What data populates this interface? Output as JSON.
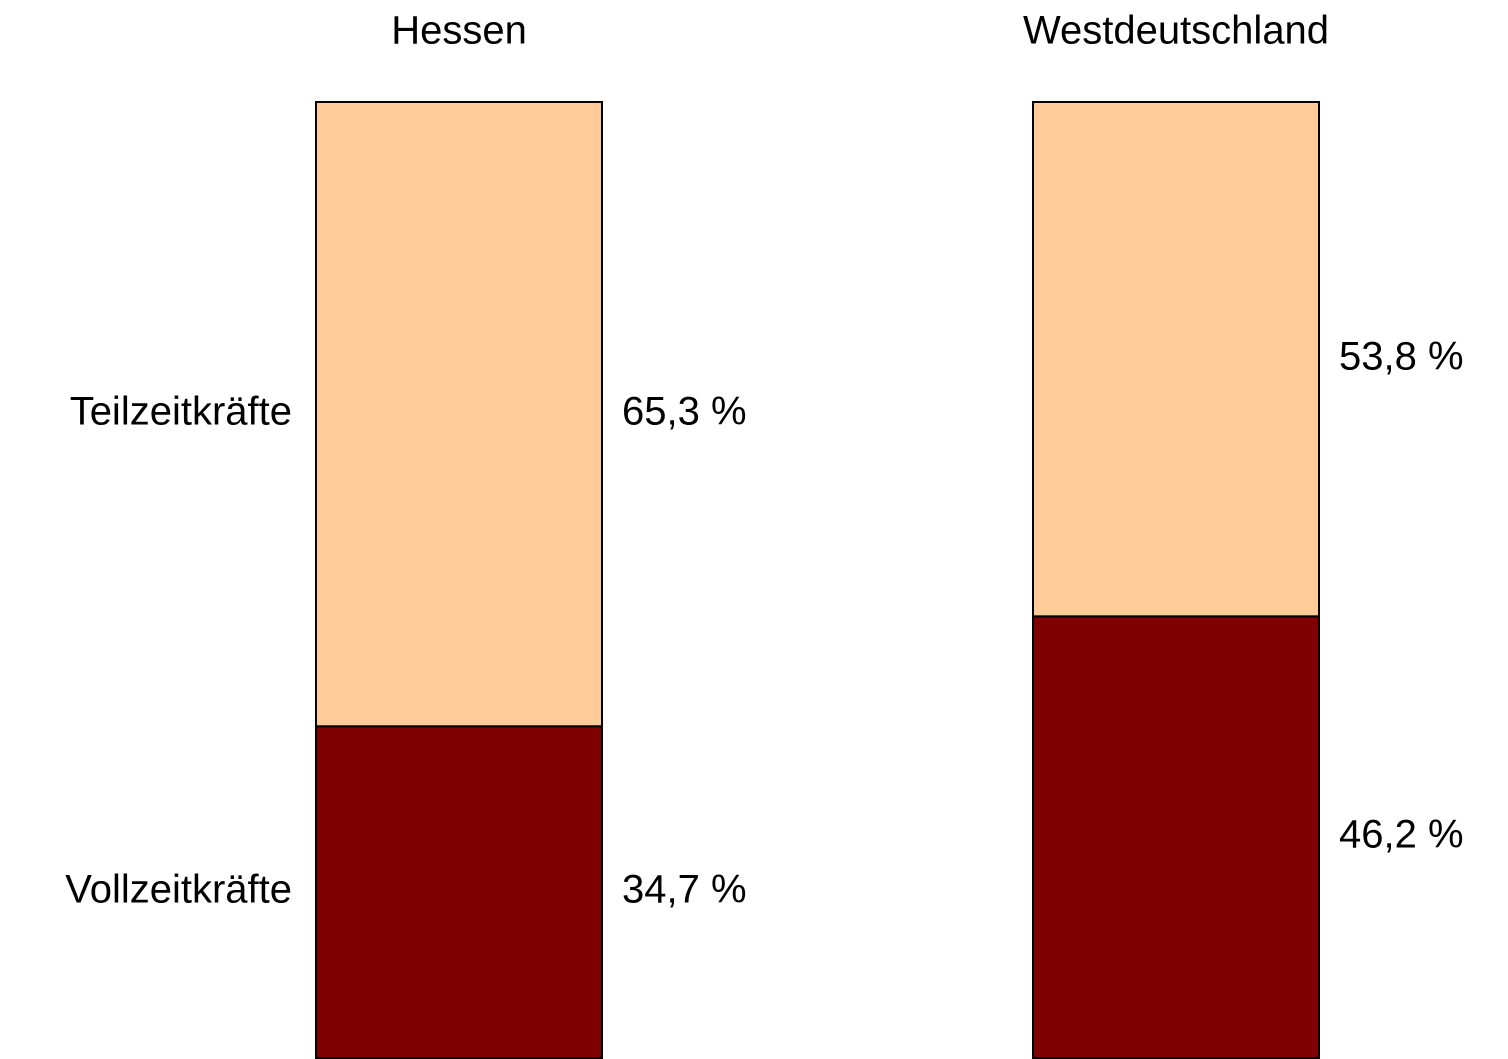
{
  "chart_data": {
    "type": "stacked_bar",
    "categories": [
      "Hessen",
      "Westdeutschland"
    ],
    "series": [
      {
        "name": "Vollzeitkräfte",
        "color": "#800000",
        "values": [
          34.7,
          46.2
        ],
        "value_labels": [
          "34,7 %",
          "46,2 %"
        ]
      },
      {
        "name": "Teilzeitkräfte",
        "color": "#ffcc99",
        "values": [
          65.3,
          53.8
        ],
        "value_labels": [
          "65,3 %",
          "53,8 %"
        ]
      }
    ],
    "ylim": [
      0,
      100
    ]
  }
}
